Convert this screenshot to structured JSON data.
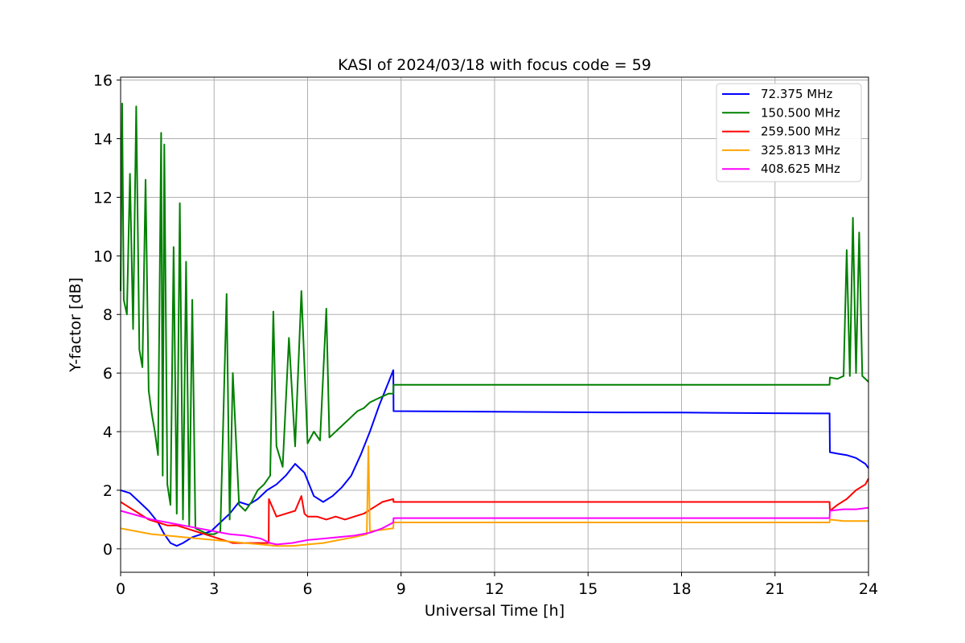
{
  "chart_data": {
    "type": "line",
    "title": "KASI of 2024/03/18 with focus code = 59",
    "xlabel": "Universal Time [h]",
    "ylabel": "Y-factor [dB]",
    "xlim": [
      0,
      24
    ],
    "ylim": [
      -0.8,
      16.1
    ],
    "xticks": [
      0,
      3,
      6,
      9,
      12,
      15,
      18,
      21,
      24
    ],
    "yticks": [
      0,
      2,
      4,
      6,
      8,
      10,
      12,
      14,
      16
    ],
    "grid": true,
    "legend_position": "top-right",
    "series": [
      {
        "name": " 72.375 MHz",
        "color": "#0000ff",
        "x": [
          0,
          0.3,
          0.6,
          0.9,
          1.2,
          1.4,
          1.6,
          1.8,
          2.0,
          2.3,
          2.6,
          2.9,
          3.2,
          3.5,
          3.8,
          4.1,
          4.4,
          4.7,
          5.0,
          5.3,
          5.6,
          5.9,
          6.2,
          6.5,
          6.8,
          7.1,
          7.4,
          7.7,
          8.0,
          8.3,
          8.6,
          8.75,
          8.76,
          12,
          15,
          18,
          21,
          22.75,
          22.76,
          23.0,
          23.3,
          23.6,
          23.9,
          24.0
        ],
        "y": [
          2.0,
          1.9,
          1.6,
          1.3,
          0.9,
          0.5,
          0.2,
          0.1,
          0.2,
          0.4,
          0.5,
          0.6,
          0.9,
          1.2,
          1.6,
          1.5,
          1.7,
          2.0,
          2.2,
          2.5,
          2.9,
          2.6,
          1.8,
          1.6,
          1.8,
          2.1,
          2.5,
          3.2,
          4.0,
          4.9,
          5.7,
          6.1,
          4.7,
          4.68,
          4.66,
          4.65,
          4.63,
          4.62,
          3.3,
          3.25,
          3.2,
          3.1,
          2.9,
          2.75
        ]
      },
      {
        "name": " 150.500 MHz",
        "color": "#008000",
        "x": [
          0,
          0.05,
          0.1,
          0.2,
          0.3,
          0.4,
          0.5,
          0.6,
          0.7,
          0.8,
          0.9,
          1.0,
          1.1,
          1.2,
          1.3,
          1.35,
          1.4,
          1.5,
          1.6,
          1.7,
          1.8,
          1.9,
          2.0,
          2.1,
          2.2,
          2.3,
          2.4,
          2.6,
          2.8,
          3.0,
          3.2,
          3.4,
          3.5,
          3.6,
          3.8,
          4.0,
          4.2,
          4.4,
          4.6,
          4.8,
          4.9,
          5.0,
          5.2,
          5.4,
          5.6,
          5.8,
          6.0,
          6.2,
          6.4,
          6.6,
          6.7,
          6.8,
          7.0,
          7.2,
          7.4,
          7.6,
          7.8,
          8.0,
          8.2,
          8.4,
          8.6,
          8.75,
          8.76,
          12,
          15,
          18,
          21,
          22.75,
          22.76,
          23.0,
          23.2,
          23.3,
          23.4,
          23.5,
          23.6,
          23.7,
          23.8,
          23.9,
          24.0
        ],
        "y": [
          8.8,
          15.2,
          8.5,
          8.0,
          12.8,
          7.5,
          15.1,
          6.8,
          6.2,
          12.6,
          5.4,
          4.6,
          4.0,
          3.2,
          14.2,
          2.5,
          13.8,
          2.2,
          1.5,
          10.3,
          1.2,
          11.8,
          1.0,
          9.8,
          0.8,
          8.5,
          0.7,
          0.6,
          0.5,
          0.5,
          0.6,
          8.7,
          1.0,
          6.0,
          1.5,
          1.3,
          1.6,
          2.0,
          2.2,
          2.5,
          8.1,
          3.5,
          2.8,
          7.2,
          3.5,
          8.8,
          3.6,
          4.0,
          3.7,
          8.2,
          3.8,
          3.9,
          4.1,
          4.3,
          4.5,
          4.7,
          4.8,
          5.0,
          5.1,
          5.2,
          5.3,
          5.3,
          5.6,
          5.6,
          5.6,
          5.6,
          5.6,
          5.6,
          5.85,
          5.8,
          5.9,
          10.2,
          5.9,
          11.3,
          6.0,
          10.8,
          5.9,
          5.8,
          5.7
        ]
      },
      {
        "name": " 259.500 MHz",
        "color": "#ff0000",
        "x": [
          0,
          0.3,
          0.6,
          0.9,
          1.2,
          1.5,
          1.8,
          2.1,
          2.4,
          2.7,
          3.0,
          3.3,
          3.6,
          3.9,
          4.2,
          4.5,
          4.75,
          4.76,
          5.0,
          5.3,
          5.6,
          5.8,
          5.9,
          6.0,
          6.3,
          6.6,
          6.9,
          7.2,
          7.5,
          7.8,
          8.1,
          8.4,
          8.75,
          8.76,
          12,
          15,
          18,
          21,
          22.75,
          22.76,
          23.0,
          23.3,
          23.6,
          23.9,
          24.0
        ],
        "y": [
          1.6,
          1.4,
          1.2,
          1.0,
          0.9,
          0.8,
          0.8,
          0.7,
          0.6,
          0.5,
          0.4,
          0.3,
          0.2,
          0.2,
          0.2,
          0.2,
          0.2,
          1.7,
          1.1,
          1.2,
          1.3,
          1.8,
          1.2,
          1.1,
          1.1,
          1.0,
          1.1,
          1.0,
          1.1,
          1.2,
          1.4,
          1.6,
          1.7,
          1.6,
          1.6,
          1.6,
          1.6,
          1.6,
          1.6,
          1.3,
          1.5,
          1.7,
          2.0,
          2.2,
          2.4
        ]
      },
      {
        "name": " 325.813 MHz",
        "color": "#ffa500",
        "x": [
          0,
          0.5,
          1.0,
          1.5,
          2.0,
          2.5,
          3.0,
          3.5,
          4.0,
          4.5,
          5.0,
          5.5,
          6.0,
          6.5,
          7.0,
          7.5,
          7.9,
          7.95,
          8.0,
          8.4,
          8.75,
          8.76,
          12,
          15,
          18,
          21,
          22.75,
          22.76,
          23.2,
          23.6,
          24.0
        ],
        "y": [
          0.7,
          0.6,
          0.5,
          0.45,
          0.4,
          0.35,
          0.3,
          0.25,
          0.2,
          0.15,
          0.1,
          0.1,
          0.15,
          0.2,
          0.3,
          0.4,
          0.5,
          3.5,
          0.6,
          0.65,
          0.7,
          0.9,
          0.9,
          0.9,
          0.9,
          0.9,
          0.9,
          1.0,
          0.95,
          0.95,
          0.95
        ]
      },
      {
        "name": " 408.625 MHz",
        "color": "#ff00ff",
        "x": [
          0,
          0.5,
          1.0,
          1.5,
          2.0,
          2.5,
          3.0,
          3.5,
          4.0,
          4.5,
          4.8,
          5.0,
          5.5,
          6.0,
          6.5,
          7.0,
          7.5,
          8.0,
          8.4,
          8.75,
          8.76,
          12,
          15,
          18,
          21,
          22.75,
          22.76,
          23.2,
          23.6,
          24.0
        ],
        "y": [
          1.3,
          1.15,
          1.0,
          0.9,
          0.8,
          0.7,
          0.6,
          0.5,
          0.45,
          0.35,
          0.2,
          0.15,
          0.2,
          0.3,
          0.35,
          0.4,
          0.45,
          0.55,
          0.7,
          0.9,
          1.05,
          1.05,
          1.05,
          1.05,
          1.05,
          1.05,
          1.3,
          1.35,
          1.35,
          1.4
        ]
      }
    ]
  }
}
